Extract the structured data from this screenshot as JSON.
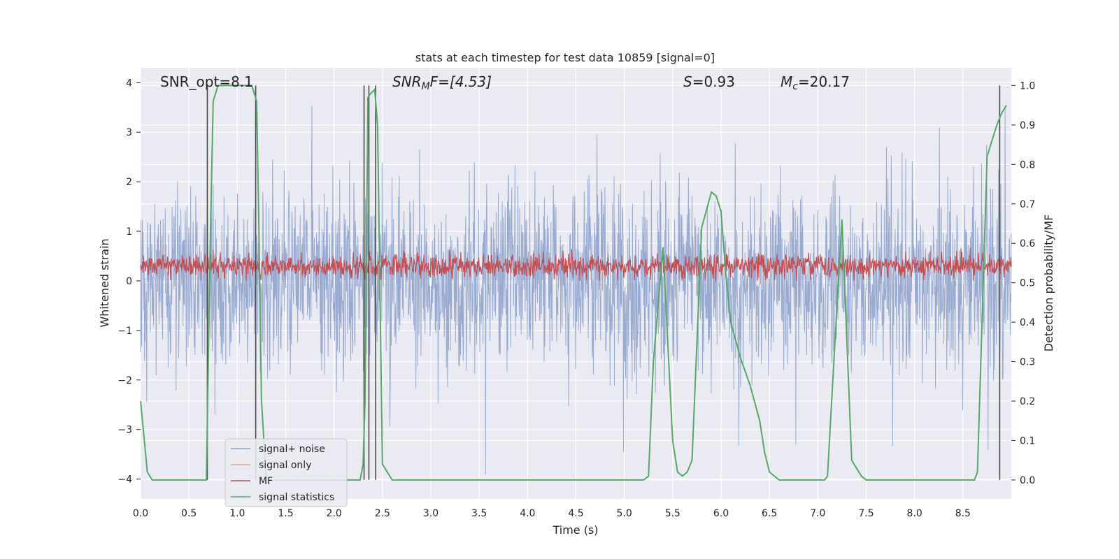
{
  "chart_data": {
    "type": "line",
    "title": "stats at each timestep for test data 10859 [signal=0]",
    "xlabel": "Time (s)",
    "ylabel": "Whitened strain",
    "y2label": "Detection probability/MF",
    "xlim": [
      0,
      9.0
    ],
    "ylim": [
      -4.4,
      4.3
    ],
    "y2lim": [
      -0.048,
      1.045
    ],
    "x_ticks": [
      "0.0",
      "0.5",
      "1.0",
      "1.5",
      "2.0",
      "2.5",
      "3.0",
      "3.5",
      "4.0",
      "4.5",
      "5.0",
      "5.5",
      "6.0",
      "6.5",
      "7.0",
      "7.5",
      "8.0",
      "8.5"
    ],
    "y_ticks": [
      "4",
      "3",
      "2",
      "1",
      "0",
      "−1",
      "−2",
      "−3",
      "−4"
    ],
    "y2_ticks": [
      "1.0",
      "0.9",
      "0.8",
      "0.7",
      "0.6",
      "0.5",
      "0.4",
      "0.3",
      "0.2",
      "0.1",
      "0.0"
    ],
    "grid": true,
    "legend_position": "bottom-left",
    "annotations": {
      "snr_opt": "SNR_opt=8.1",
      "snr_mf_base": "SNR",
      "snr_mf_sub": "M",
      "snr_mf_rest": "F=[4.53]",
      "s_italic": "S",
      "s_rest": "=0.93",
      "mc_base": "M",
      "mc_sub": "c",
      "mc_rest": "=20.17"
    },
    "series": [
      {
        "name": "signal+ noise",
        "color": "#8fa3cc",
        "style": "noise",
        "amplitude_typical": 1.5,
        "amplitude_max": 3.9
      },
      {
        "name": "signal only",
        "color": "#e8a788",
        "style": "flat",
        "values": []
      },
      {
        "name": "MF",
        "color": "#c44e52",
        "style": "noise",
        "center": 0.3,
        "amplitude_typical": 0.3
      },
      {
        "name": "signal statistics",
        "color": "#55a868",
        "axis": "right",
        "x": [
          0.0,
          0.07,
          0.12,
          0.2,
          0.4,
          0.6,
          0.68,
          0.72,
          0.75,
          0.8,
          0.85,
          1.0,
          1.1,
          1.15,
          1.2,
          1.22,
          1.25,
          1.3,
          1.4,
          1.6,
          1.8,
          2.0,
          2.2,
          2.27,
          2.3,
          2.32,
          2.35,
          2.38,
          2.42,
          2.45,
          2.5,
          2.6,
          3.0,
          4.0,
          5.0,
          5.2,
          5.25,
          5.3,
          5.4,
          5.5,
          5.55,
          5.6,
          5.65,
          5.7,
          5.8,
          5.9,
          5.95,
          6.0,
          6.05,
          6.1,
          6.2,
          6.3,
          6.4,
          6.45,
          6.5,
          6.6,
          7.0,
          7.07,
          7.1,
          7.2,
          7.25,
          7.35,
          7.45,
          7.5,
          7.6,
          8.0,
          8.5,
          8.62,
          8.65,
          8.75,
          8.8,
          8.85,
          8.9,
          8.95
        ],
        "values": [
          0.2,
          0.02,
          0.0,
          0.0,
          0.0,
          0.0,
          0.0,
          0.6,
          0.96,
          1.0,
          1.0,
          1.0,
          1.0,
          1.0,
          0.96,
          0.68,
          0.2,
          0.0,
          0.0,
          0.0,
          0.0,
          0.0,
          0.0,
          0.0,
          0.04,
          0.2,
          0.97,
          0.98,
          0.99,
          0.9,
          0.04,
          0.0,
          0.0,
          0.0,
          0.0,
          0.0,
          0.01,
          0.3,
          0.59,
          0.1,
          0.02,
          0.01,
          0.02,
          0.05,
          0.64,
          0.73,
          0.72,
          0.68,
          0.52,
          0.4,
          0.31,
          0.24,
          0.15,
          0.07,
          0.02,
          0.0,
          0.0,
          0.0,
          0.01,
          0.45,
          0.66,
          0.05,
          0.01,
          0.0,
          0.0,
          0.0,
          0.0,
          0.0,
          0.02,
          0.82,
          0.86,
          0.9,
          0.93,
          0.95
        ]
      }
    ],
    "vertical_lines_x": [
      0.69,
      1.19,
      2.31,
      2.36,
      2.43,
      8.88
    ]
  },
  "legend": {
    "items": [
      {
        "label": "signal+ noise",
        "color": "#8fa3cc"
      },
      {
        "label": "signal only",
        "color": "#e8a788"
      },
      {
        "label": "MF",
        "color": "#c44e52"
      },
      {
        "label": "signal statistics",
        "color": "#55a868"
      }
    ]
  },
  "colors": {
    "plot_bg": "#eaeaf2",
    "grid": "#ffffff",
    "vline": "#4a4a4a"
  }
}
